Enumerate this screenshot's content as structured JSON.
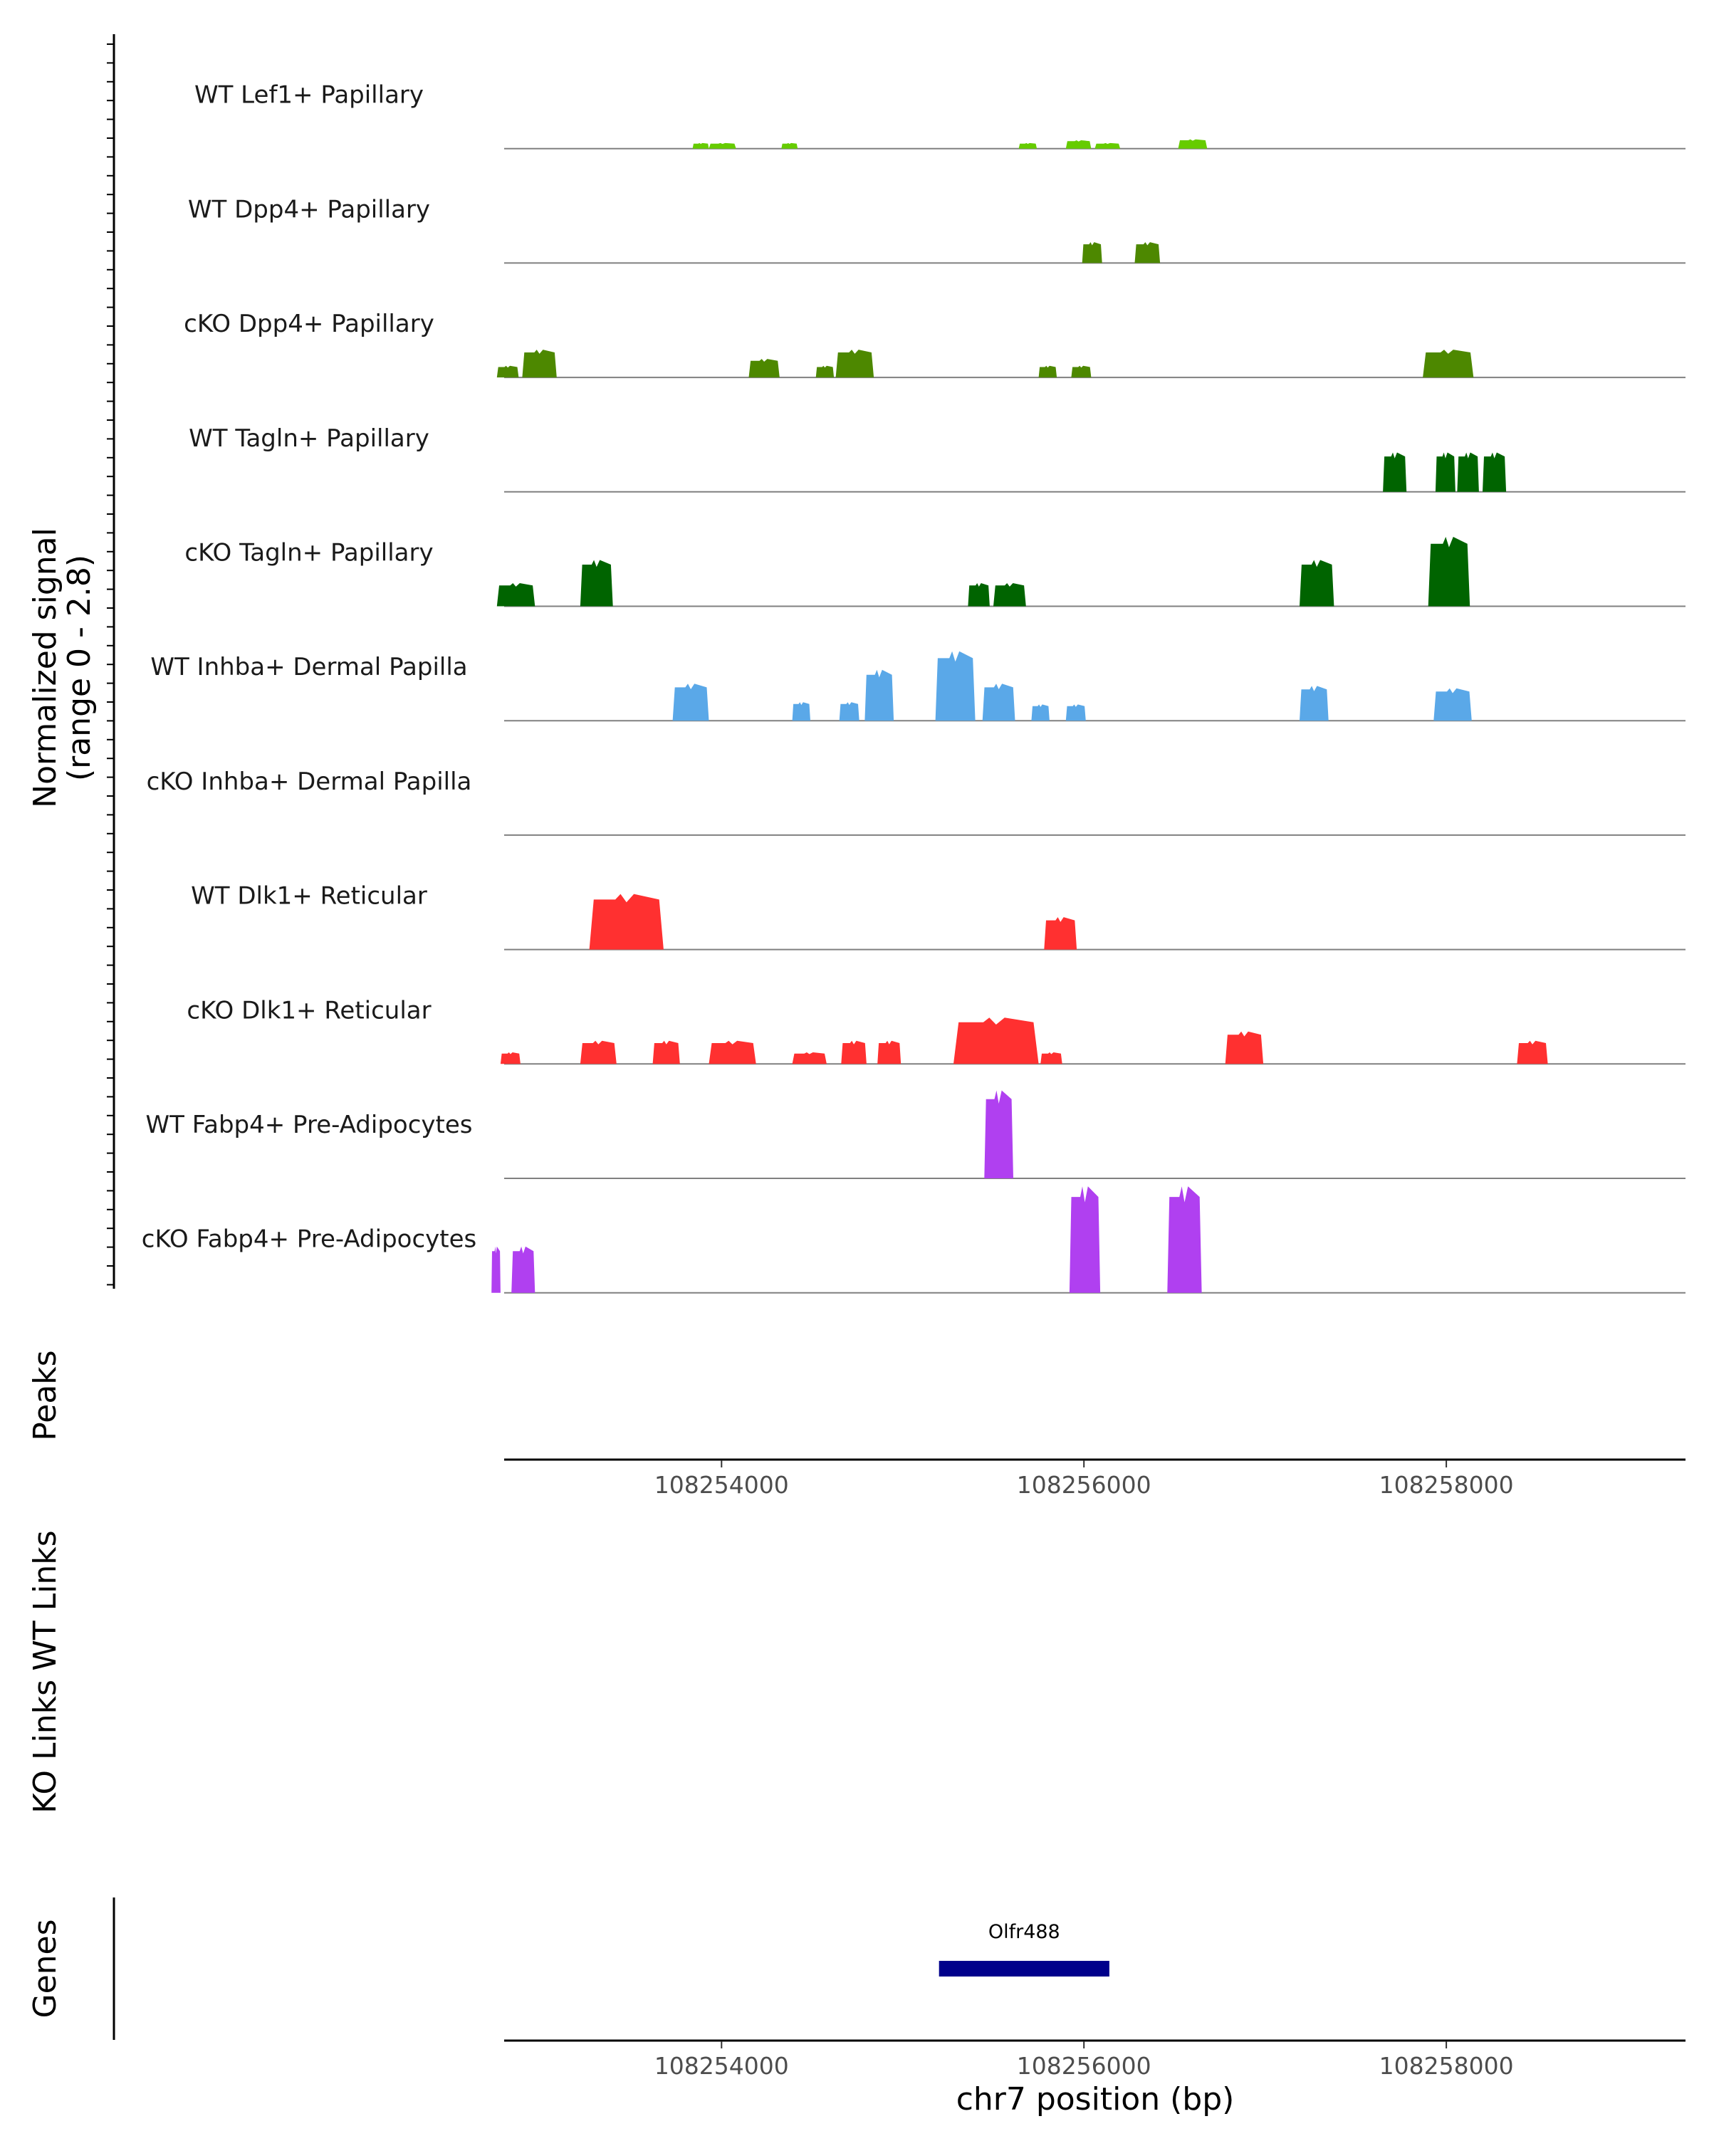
{
  "chart_data": {
    "type": "genome-coverage",
    "title": "",
    "y_axis_label": "Normalized signal",
    "y_axis_range_label": "(range 0 - 2.8)",
    "ylim": [
      0,
      2.8
    ],
    "xlabel": "chr7 position (bp)",
    "xlim": [
      108252800,
      108259320
    ],
    "x_ticks": [
      108254000,
      108256000,
      108258000
    ],
    "x_tick_labels": [
      "108254000",
      "108256000",
      "108258000"
    ],
    "tracks": [
      {
        "name": "WT Lef1+ Papillary",
        "color": "#66cc00",
        "peaks": [
          {
            "start": 108253840,
            "end": 108253930,
            "h": 0.12
          },
          {
            "start": 108253930,
            "end": 108254080,
            "h": 0.12
          },
          {
            "start": 108254330,
            "end": 108254420,
            "h": 0.12
          },
          {
            "start": 108255640,
            "end": 108255740,
            "h": 0.12
          },
          {
            "start": 108255900,
            "end": 108256040,
            "h": 0.18
          },
          {
            "start": 108256060,
            "end": 108256200,
            "h": 0.12
          },
          {
            "start": 108256520,
            "end": 108256680,
            "h": 0.2
          }
        ]
      },
      {
        "name": "WT Dpp4+ Papillary",
        "color": "#4d8800",
        "peaks": [
          {
            "start": 108255990,
            "end": 108256100,
            "h": 0.45
          },
          {
            "start": 108256280,
            "end": 108256420,
            "h": 0.45
          }
        ]
      },
      {
        "name": "cKO Dpp4+ Papillary",
        "color": "#4d8800",
        "peaks": [
          {
            "start": 108252760,
            "end": 108252880,
            "h": 0.25
          },
          {
            "start": 108252900,
            "end": 108253090,
            "h": 0.6
          },
          {
            "start": 108254150,
            "end": 108254320,
            "h": 0.4
          },
          {
            "start": 108254520,
            "end": 108254620,
            "h": 0.25
          },
          {
            "start": 108254630,
            "end": 108254840,
            "h": 0.6
          },
          {
            "start": 108255750,
            "end": 108255850,
            "h": 0.25
          },
          {
            "start": 108255930,
            "end": 108256040,
            "h": 0.25
          },
          {
            "start": 108257870,
            "end": 108258150,
            "h": 0.6
          }
        ]
      },
      {
        "name": "WT Tagln+ Papillary",
        "color": "#006400",
        "peaks": [
          {
            "start": 108257650,
            "end": 108257780,
            "h": 0.85
          },
          {
            "start": 108257940,
            "end": 108258050,
            "h": 0.85
          },
          {
            "start": 108258060,
            "end": 108258180,
            "h": 0.85
          },
          {
            "start": 108258200,
            "end": 108258330,
            "h": 0.85
          }
        ]
      },
      {
        "name": "cKO Tagln+ Papillary",
        "color": "#006400",
        "peaks": [
          {
            "start": 108252760,
            "end": 108252970,
            "h": 0.5
          },
          {
            "start": 108253220,
            "end": 108253400,
            "h": 1.0
          },
          {
            "start": 108255360,
            "end": 108255480,
            "h": 0.5
          },
          {
            "start": 108255500,
            "end": 108255680,
            "h": 0.5
          },
          {
            "start": 108257190,
            "end": 108257380,
            "h": 1.0
          },
          {
            "start": 108257900,
            "end": 108258130,
            "h": 1.5
          }
        ]
      },
      {
        "name": "WT Inhba+ Dermal Papilla",
        "color": "#5aa8e8",
        "peaks": [
          {
            "start": 108253730,
            "end": 108253930,
            "h": 0.8
          },
          {
            "start": 108254390,
            "end": 108254490,
            "h": 0.4
          },
          {
            "start": 108254650,
            "end": 108254760,
            "h": 0.4
          },
          {
            "start": 108254790,
            "end": 108254950,
            "h": 1.1
          },
          {
            "start": 108255180,
            "end": 108255400,
            "h": 1.5
          },
          {
            "start": 108255440,
            "end": 108255620,
            "h": 0.8
          },
          {
            "start": 108255710,
            "end": 108255810,
            "h": 0.35
          },
          {
            "start": 108255900,
            "end": 108256010,
            "h": 0.35
          },
          {
            "start": 108257190,
            "end": 108257350,
            "h": 0.75
          },
          {
            "start": 108257930,
            "end": 108258140,
            "h": 0.7
          }
        ]
      },
      {
        "name": "cKO Inhba+ Dermal Papilla",
        "color": "#5aa8e8",
        "peaks": []
      },
      {
        "name": "WT Dlk1+ Reticular",
        "color": "#ff3030",
        "peaks": [
          {
            "start": 108253270,
            "end": 108253680,
            "h": 1.2
          },
          {
            "start": 108255780,
            "end": 108255960,
            "h": 0.7
          }
        ]
      },
      {
        "name": "cKO Dlk1+ Reticular",
        "color": "#ff3030",
        "peaks": [
          {
            "start": 108252780,
            "end": 108252890,
            "h": 0.25
          },
          {
            "start": 108253220,
            "end": 108253420,
            "h": 0.5
          },
          {
            "start": 108253620,
            "end": 108253770,
            "h": 0.5
          },
          {
            "start": 108253930,
            "end": 108254190,
            "h": 0.5
          },
          {
            "start": 108254390,
            "end": 108254580,
            "h": 0.25
          },
          {
            "start": 108254660,
            "end": 108254800,
            "h": 0.5
          },
          {
            "start": 108254860,
            "end": 108254990,
            "h": 0.5
          },
          {
            "start": 108255280,
            "end": 108255750,
            "h": 1.0
          },
          {
            "start": 108255760,
            "end": 108255880,
            "h": 0.25
          },
          {
            "start": 108256780,
            "end": 108256990,
            "h": 0.7
          },
          {
            "start": 108258390,
            "end": 108258560,
            "h": 0.5
          }
        ]
      },
      {
        "name": "WT Fabp4+ Pre-Adipocytes",
        "color": "#b040f0",
        "peaks": [
          {
            "start": 108255450,
            "end": 108255610,
            "h": 1.9
          }
        ]
      },
      {
        "name": "cKO Fabp4+ Pre-Adipocytes",
        "color": "#b040f0",
        "peaks": [
          {
            "start": 108252730,
            "end": 108252780,
            "h": 1.0
          },
          {
            "start": 108252840,
            "end": 108252970,
            "h": 1.0
          },
          {
            "start": 108255920,
            "end": 108256090,
            "h": 2.3
          },
          {
            "start": 108256460,
            "end": 108256650,
            "h": 2.3
          }
        ]
      }
    ],
    "panels": {
      "peaks_label": "Peaks",
      "wt_links_label": "WT Links",
      "ko_links_label": "KO Links",
      "genes_label": "Genes"
    },
    "genes": [
      {
        "name": "Olfr488",
        "start": 108255200,
        "end": 108256140,
        "color": "#00008b"
      }
    ]
  }
}
